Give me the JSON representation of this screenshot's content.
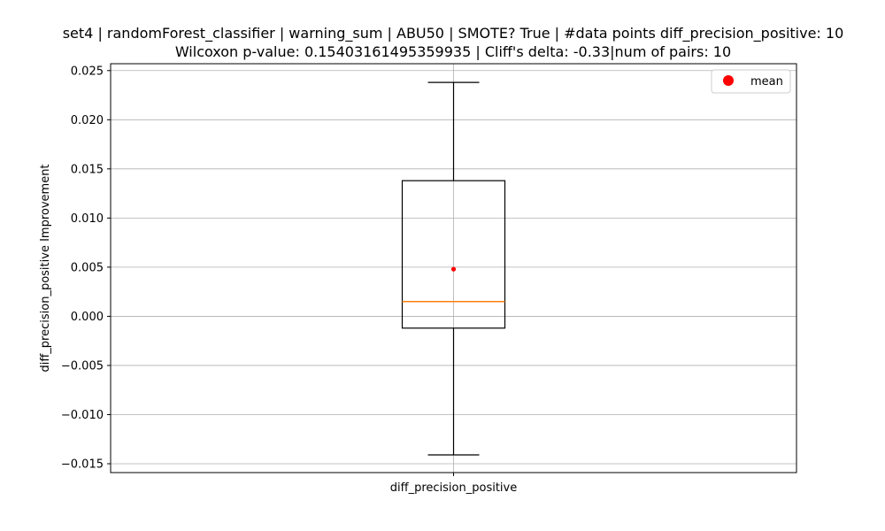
{
  "chart_data": {
    "type": "box",
    "title_line1": "set4 | randomForest_classifier | warning_sum | ABU50 | SMOTE? True | #data points diff_precision_positive: 10",
    "title_line2": "Wilcoxon p-value: 0.15403161495359935 | Cliff's delta: -0.33|num of pairs: 10",
    "ylabel": "diff_precision_positive Improvement",
    "categories": [
      "diff_precision_positive"
    ],
    "ylim": [
      -0.0159,
      0.0257
    ],
    "yticks": [
      -0.015,
      -0.01,
      -0.005,
      0.0,
      0.005,
      0.01,
      0.015,
      0.02,
      0.025
    ],
    "ytick_labels": [
      "−0.015",
      "−0.010",
      "−0.005",
      "0.000",
      "0.005",
      "0.010",
      "0.015",
      "0.020",
      "0.025"
    ],
    "grid": true,
    "legend": {
      "placement": "top-right",
      "entries": [
        {
          "label": "mean",
          "color": "#ff0000"
        }
      ]
    },
    "box": {
      "whisker_low": -0.0141,
      "q1": -0.0012,
      "median": 0.0015,
      "q3": 0.0138,
      "whisker_high": 0.0238,
      "mean": 0.0048
    },
    "colors": {
      "median": "#ff7f0e",
      "mean": "#ff0000",
      "box": "#000000",
      "grid": "#b0b0b0"
    }
  }
}
